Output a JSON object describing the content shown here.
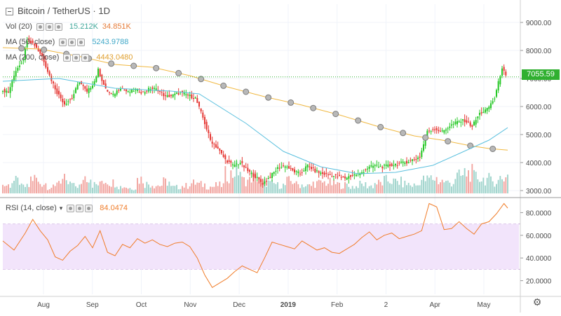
{
  "header": {
    "title": "Bitcoin / TetherUS · 1D",
    "vol_label": "Vol (20)",
    "vol_value1": "15.212K",
    "vol_value2": "34.851K",
    "ma50_label": "MA (50, close)",
    "ma50_value": "5243.9788",
    "ma200_label": "MA (200, close)",
    "ma200_value": "4443.0480",
    "rsi_label": "RSI (14, close)",
    "rsi_value": "84.0474",
    "last_price": "7055.59"
  },
  "colors": {
    "up": "#26c826",
    "down": "#e53935",
    "vol_up": "#9fd4cc",
    "vol_down": "#f2a5a0",
    "ma50": "#5bc0de",
    "ma200": "#f0b840",
    "rsi": "#f07d2a",
    "rsi_band": "#f2e4fb",
    "price_line": "#30b030"
  },
  "icons": {
    "collapse": "minus-square-icon",
    "settings": "gear-icon"
  },
  "chart_data": [
    {
      "type": "candlestick",
      "title": "Bitcoin / TetherUS · 1D",
      "price_axis": {
        "ticks": [
          3000,
          4000,
          5000,
          6000,
          7000,
          8000,
          9000
        ],
        "labels": [
          "3000.00",
          "4000.00",
          "5000.00",
          "6000.00",
          "7000.00",
          "8000.00",
          "9000.00"
        ],
        "range": [
          2800,
          9650
        ]
      },
      "time_axis": {
        "labels": [
          "Aug",
          "Sep",
          "Oct",
          "Nov",
          "Dec",
          "2019",
          "Feb",
          "2",
          "Apr",
          "May"
        ]
      },
      "price_path": [
        [
          0,
          6600
        ],
        [
          4,
          6500
        ],
        [
          8,
          7300
        ],
        [
          12,
          7700
        ],
        [
          14,
          8400
        ],
        [
          18,
          8200
        ],
        [
          22,
          7800
        ],
        [
          26,
          7100
        ],
        [
          30,
          6500
        ],
        [
          34,
          6100
        ],
        [
          38,
          6300
        ],
        [
          42,
          6900
        ],
        [
          46,
          6500
        ],
        [
          50,
          6900
        ],
        [
          52,
          7300
        ],
        [
          56,
          6600
        ],
        [
          60,
          6400
        ],
        [
          64,
          6700
        ],
        [
          68,
          6500
        ],
        [
          72,
          6600
        ],
        [
          76,
          6500
        ],
        [
          80,
          6650
        ],
        [
          84,
          6600
        ],
        [
          88,
          6350
        ],
        [
          92,
          6400
        ],
        [
          96,
          6500
        ],
        [
          100,
          6400
        ],
        [
          104,
          6300
        ],
        [
          108,
          5600
        ],
        [
          112,
          4800
        ],
        [
          116,
          4500
        ],
        [
          120,
          4100
        ],
        [
          124,
          3900
        ],
        [
          128,
          4000
        ],
        [
          132,
          3700
        ],
        [
          136,
          3500
        ],
        [
          140,
          3250
        ],
        [
          144,
          3500
        ],
        [
          148,
          3800
        ],
        [
          152,
          3900
        ],
        [
          156,
          3700
        ],
        [
          160,
          3600
        ],
        [
          164,
          3900
        ],
        [
          168,
          3700
        ],
        [
          172,
          3600
        ],
        [
          176,
          3550
        ],
        [
          180,
          3500
        ],
        [
          184,
          3450
        ],
        [
          188,
          3550
        ],
        [
          192,
          3600
        ],
        [
          196,
          3800
        ],
        [
          200,
          3900
        ],
        [
          204,
          3850
        ],
        [
          208,
          3900
        ],
        [
          212,
          3950
        ],
        [
          216,
          4000
        ],
        [
          220,
          4100
        ],
        [
          224,
          4200
        ],
        [
          228,
          5100
        ],
        [
          232,
          5200
        ],
        [
          236,
          5100
        ],
        [
          240,
          5300
        ],
        [
          244,
          5450
        ],
        [
          248,
          5500
        ],
        [
          252,
          5300
        ],
        [
          256,
          5750
        ],
        [
          260,
          5900
        ],
        [
          264,
          6300
        ],
        [
          268,
          7400
        ],
        [
          270,
          7060
        ]
      ],
      "ma50_path": [
        [
          0,
          6900
        ],
        [
          30,
          7000
        ],
        [
          60,
          6650
        ],
        [
          90,
          6550
        ],
        [
          105,
          6450
        ],
        [
          130,
          5400
        ],
        [
          150,
          4400
        ],
        [
          170,
          3850
        ],
        [
          190,
          3600
        ],
        [
          210,
          3650
        ],
        [
          230,
          3900
        ],
        [
          250,
          4500
        ],
        [
          260,
          4800
        ],
        [
          270,
          5244
        ]
      ],
      "ma200_path": [
        [
          0,
          8100
        ],
        [
          20,
          8050
        ],
        [
          40,
          7800
        ],
        [
          60,
          7500
        ],
        [
          80,
          7400
        ],
        [
          100,
          7100
        ],
        [
          120,
          6700
        ],
        [
          140,
          6350
        ],
        [
          160,
          6050
        ],
        [
          180,
          5700
        ],
        [
          200,
          5300
        ],
        [
          220,
          4950
        ],
        [
          235,
          4800
        ],
        [
          250,
          4600
        ],
        [
          260,
          4500
        ],
        [
          270,
          4443
        ]
      ]
    },
    {
      "type": "bar",
      "title": "Vol (20)",
      "values_K": [
        12,
        18,
        10,
        22,
        15,
        9,
        20,
        14,
        11,
        25,
        13,
        19,
        16,
        10,
        8,
        21,
        14,
        12,
        17,
        9,
        11,
        15,
        13,
        10,
        12,
        28,
        34,
        19,
        24,
        16,
        14,
        12,
        18,
        13,
        11,
        15,
        16,
        14,
        12,
        10,
        13,
        11,
        15,
        19,
        17,
        14,
        12,
        20,
        22,
        18,
        16,
        25,
        30,
        24,
        21,
        18,
        23,
        35
      ]
    },
    {
      "type": "line",
      "title": "RSI (14, close)",
      "y_axis": {
        "ticks": [
          20,
          40,
          60,
          80
        ],
        "labels": [
          "20.0000",
          "40.0000",
          "60.0000",
          "80.0000"
        ],
        "range": [
          8,
          92
        ]
      },
      "band": [
        30,
        70
      ],
      "path": [
        [
          0,
          55
        ],
        [
          6,
          47
        ],
        [
          12,
          62
        ],
        [
          16,
          74
        ],
        [
          20,
          64
        ],
        [
          24,
          56
        ],
        [
          28,
          41
        ],
        [
          32,
          38
        ],
        [
          36,
          46
        ],
        [
          40,
          51
        ],
        [
          44,
          59
        ],
        [
          48,
          49
        ],
        [
          52,
          64
        ],
        [
          56,
          45
        ],
        [
          60,
          42
        ],
        [
          64,
          52
        ],
        [
          68,
          49
        ],
        [
          72,
          57
        ],
        [
          76,
          53
        ],
        [
          80,
          56
        ],
        [
          84,
          52
        ],
        [
          88,
          50
        ],
        [
          92,
          53
        ],
        [
          96,
          54
        ],
        [
          100,
          50
        ],
        [
          104,
          40
        ],
        [
          108,
          25
        ],
        [
          112,
          14
        ],
        [
          116,
          18
        ],
        [
          120,
          22
        ],
        [
          124,
          28
        ],
        [
          128,
          33
        ],
        [
          132,
          30
        ],
        [
          136,
          27
        ],
        [
          140,
          40
        ],
        [
          144,
          54
        ],
        [
          148,
          52
        ],
        [
          152,
          50
        ],
        [
          156,
          48
        ],
        [
          160,
          55
        ],
        [
          164,
          51
        ],
        [
          168,
          47
        ],
        [
          172,
          49
        ],
        [
          176,
          45
        ],
        [
          180,
          44
        ],
        [
          184,
          48
        ],
        [
          188,
          52
        ],
        [
          192,
          58
        ],
        [
          196,
          63
        ],
        [
          200,
          56
        ],
        [
          204,
          60
        ],
        [
          208,
          62
        ],
        [
          212,
          57
        ],
        [
          216,
          59
        ],
        [
          220,
          61
        ],
        [
          224,
          64
        ],
        [
          228,
          88
        ],
        [
          232,
          85
        ],
        [
          236,
          65
        ],
        [
          240,
          66
        ],
        [
          244,
          72
        ],
        [
          248,
          66
        ],
        [
          252,
          61
        ],
        [
          256,
          70
        ],
        [
          260,
          72
        ],
        [
          264,
          79
        ],
        [
          268,
          88
        ],
        [
          270,
          84
        ]
      ]
    }
  ]
}
